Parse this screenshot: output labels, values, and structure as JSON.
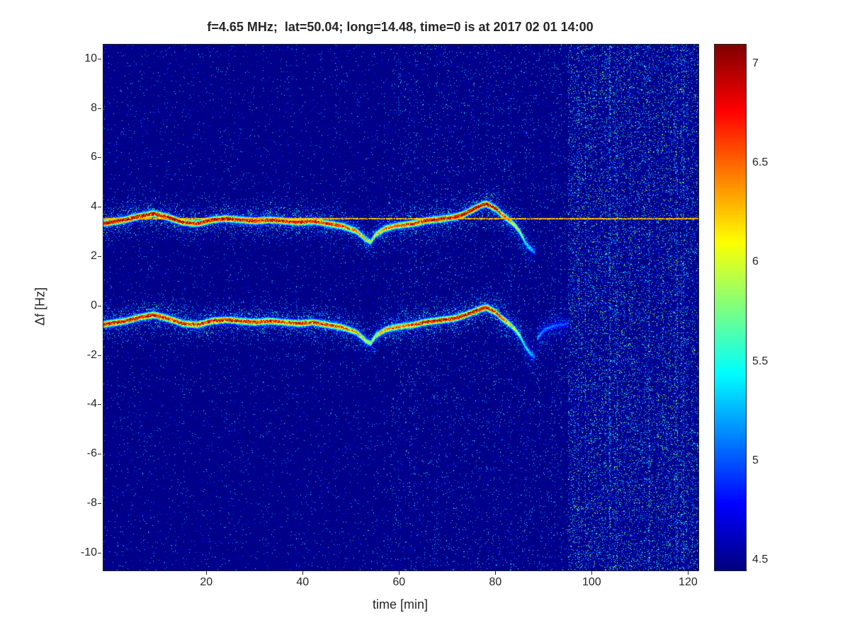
{
  "colors": {
    "background": "#ffffff",
    "text": "#262626",
    "axis": "#262626"
  },
  "chart_data": {
    "type": "heatmap",
    "title": "f=4.65 MHz;  lat=50.04; long=14.48, time=0 is at 2017 02 01 14:00",
    "xlabel": "time [min]",
    "ylabel": "Δf [Hz]",
    "xlim": [
      -1.5,
      122
    ],
    "ylim": [
      -10.7,
      10.6
    ],
    "x_ticks": [
      20,
      40,
      60,
      80,
      100,
      120
    ],
    "y_ticks": [
      10,
      8,
      6,
      4,
      2,
      0,
      -2,
      -4,
      -6,
      -8,
      -10
    ],
    "grid": false,
    "legend": null,
    "colormap": "jet",
    "colorbar": {
      "min": 4.45,
      "max": 7.1,
      "ticks": [
        7,
        6.5,
        6,
        5.5,
        5,
        4.5
      ],
      "position": "right"
    },
    "background_value": 4.42,
    "carrier_line": {
      "f": 3.55,
      "value": 6.25
    },
    "noise_regions": [
      {
        "t_start": -1.5,
        "t_end": 58,
        "density": 0.05,
        "spread": 1.1
      },
      {
        "t_start": 58,
        "t_end": 95,
        "density": 0.08,
        "spread": 1.25
      },
      {
        "t_start": 95,
        "t_end": 122,
        "density": 0.3,
        "spread": 1.6
      }
    ],
    "traces": [
      {
        "name": "upper-doppler-trace",
        "sigma": 0.09,
        "points": [
          [
            -2,
            3.35,
            7.0
          ],
          [
            3,
            3.5,
            7.05
          ],
          [
            6,
            3.65,
            7.1
          ],
          [
            9,
            3.75,
            7.1
          ],
          [
            12,
            3.6,
            7.0
          ],
          [
            15,
            3.4,
            6.9
          ],
          [
            18,
            3.35,
            6.9
          ],
          [
            21,
            3.5,
            7.0
          ],
          [
            24,
            3.55,
            7.0
          ],
          [
            27,
            3.5,
            6.9
          ],
          [
            30,
            3.45,
            6.9
          ],
          [
            33,
            3.5,
            6.95
          ],
          [
            36,
            3.45,
            6.85
          ],
          [
            39,
            3.4,
            6.9
          ],
          [
            42,
            3.45,
            6.85
          ],
          [
            45,
            3.35,
            6.8
          ],
          [
            48,
            3.25,
            6.7
          ],
          [
            51,
            3.05,
            6.45
          ],
          [
            53,
            2.7,
            6.05
          ],
          [
            54,
            2.6,
            5.95
          ],
          [
            55,
            2.9,
            6.15
          ],
          [
            57,
            3.15,
            6.45
          ],
          [
            59,
            3.25,
            6.6
          ],
          [
            61,
            3.3,
            6.7
          ],
          [
            63,
            3.35,
            6.8
          ],
          [
            65,
            3.45,
            6.9
          ],
          [
            67,
            3.5,
            7.0
          ],
          [
            69,
            3.55,
            7.0
          ],
          [
            71,
            3.6,
            7.0
          ],
          [
            73,
            3.7,
            7.05
          ],
          [
            75,
            3.9,
            7.1
          ],
          [
            77,
            4.1,
            7.1
          ],
          [
            78,
            4.15,
            7.05
          ],
          [
            79,
            4.05,
            7.0
          ],
          [
            80,
            3.95,
            6.9
          ],
          [
            81,
            3.75,
            6.7
          ],
          [
            82,
            3.6,
            6.5
          ],
          [
            83,
            3.45,
            6.3
          ],
          [
            84,
            3.25,
            6.1
          ],
          [
            85,
            3.0,
            5.9
          ],
          [
            86,
            2.6,
            5.6
          ],
          [
            87,
            2.35,
            5.4
          ],
          [
            88,
            2.2,
            5.1
          ]
        ]
      },
      {
        "name": "lower-doppler-trace",
        "sigma": 0.09,
        "points": [
          [
            -2,
            -0.75,
            6.9
          ],
          [
            3,
            -0.6,
            6.95
          ],
          [
            6,
            -0.45,
            7.0
          ],
          [
            9,
            -0.35,
            7.0
          ],
          [
            12,
            -0.5,
            6.9
          ],
          [
            15,
            -0.7,
            6.85
          ],
          [
            18,
            -0.75,
            6.8
          ],
          [
            21,
            -0.6,
            6.9
          ],
          [
            24,
            -0.55,
            6.9
          ],
          [
            27,
            -0.6,
            6.85
          ],
          [
            30,
            -0.65,
            6.8
          ],
          [
            33,
            -0.6,
            6.85
          ],
          [
            36,
            -0.65,
            6.75
          ],
          [
            39,
            -0.7,
            6.8
          ],
          [
            42,
            -0.65,
            6.75
          ],
          [
            45,
            -0.75,
            6.7
          ],
          [
            48,
            -0.85,
            6.6
          ],
          [
            51,
            -1.05,
            6.35
          ],
          [
            53,
            -1.4,
            5.95
          ],
          [
            54,
            -1.5,
            5.85
          ],
          [
            55,
            -1.2,
            6.05
          ],
          [
            57,
            -0.95,
            6.35
          ],
          [
            59,
            -0.85,
            6.5
          ],
          [
            61,
            -0.8,
            6.6
          ],
          [
            63,
            -0.75,
            6.7
          ],
          [
            65,
            -0.65,
            6.8
          ],
          [
            67,
            -0.6,
            6.9
          ],
          [
            69,
            -0.55,
            6.9
          ],
          [
            71,
            -0.5,
            6.9
          ],
          [
            73,
            -0.4,
            7.0
          ],
          [
            75,
            -0.25,
            7.0
          ],
          [
            77,
            -0.1,
            7.0
          ],
          [
            78,
            -0.05,
            6.95
          ],
          [
            79,
            -0.15,
            6.9
          ],
          [
            80,
            -0.25,
            6.8
          ],
          [
            81,
            -0.45,
            6.6
          ],
          [
            82,
            -0.6,
            6.4
          ],
          [
            83,
            -0.75,
            6.2
          ],
          [
            84,
            -0.95,
            6.0
          ],
          [
            85,
            -1.2,
            5.8
          ],
          [
            86,
            -1.6,
            5.5
          ],
          [
            87,
            -1.9,
            5.3
          ],
          [
            88,
            -2.05,
            5.1
          ]
        ]
      },
      {
        "name": "lower-trace-tail",
        "sigma": 0.08,
        "points": [
          [
            88.5,
            -1.3,
            5.2
          ],
          [
            90,
            -0.95,
            5.15
          ],
          [
            92,
            -0.8,
            5.05
          ],
          [
            95,
            -0.7,
            4.95
          ]
        ]
      }
    ]
  }
}
